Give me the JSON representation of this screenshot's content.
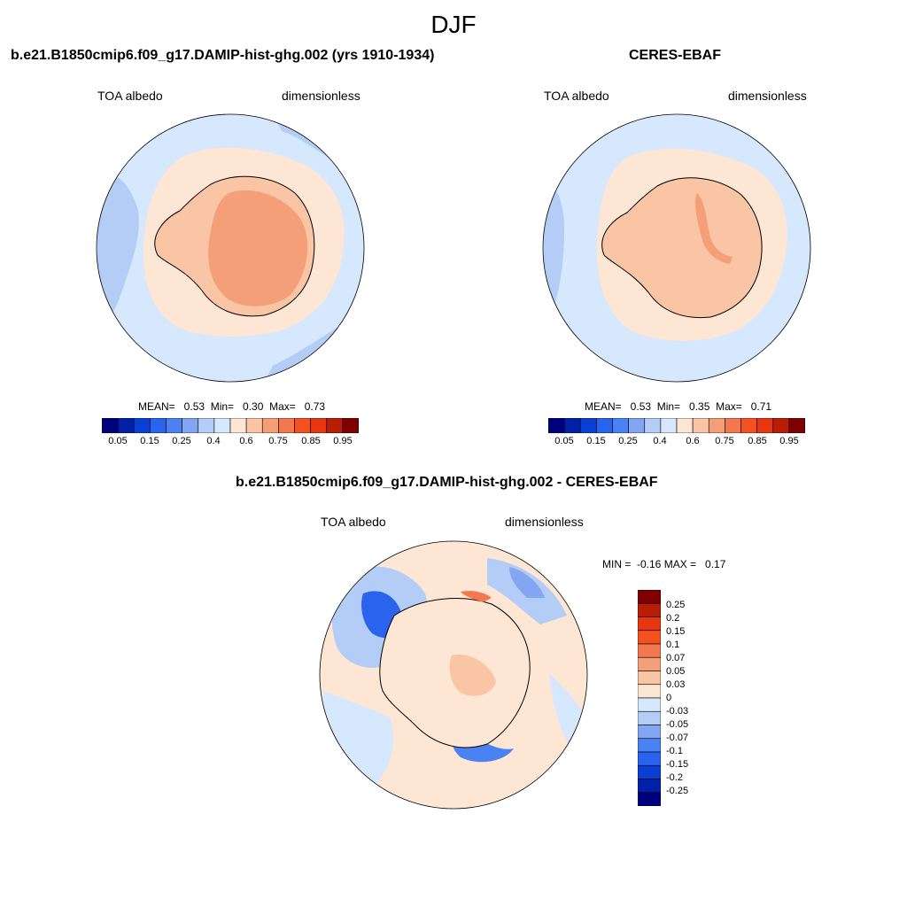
{
  "suptitle": "DJF",
  "palette": [
    "#00007f",
    "#0020a8",
    "#0a3fd6",
    "#2a63ee",
    "#4b82f3",
    "#84a6f2",
    "#b3cdf7",
    "#d6e8fd",
    "#fde6d4",
    "#f9c5a5",
    "#f59f78",
    "#f4784f",
    "#f55020",
    "#e63710",
    "#b81d06",
    "#7f0000"
  ],
  "left_panel": {
    "title": "b.e21.B1850cmip6.f09_g17.DAMIP-hist-ghg.002 (yrs 1910-1934)",
    "variable": "TOA albedo",
    "units": "dimensionless",
    "stats": "MEAN=   0.53  Min=   0.30  Max=   0.73",
    "colorbar_ticks": [
      "0.05",
      "0.15",
      "0.25",
      "0.4",
      "0.6",
      "0.75",
      "0.85",
      "0.95"
    ]
  },
  "right_panel": {
    "title": "CERES-EBAF",
    "variable": "TOA albedo",
    "units": "dimensionless",
    "stats": "MEAN=   0.53  Min=   0.35  Max=   0.71",
    "colorbar_ticks": [
      "0.05",
      "0.15",
      "0.25",
      "0.4",
      "0.6",
      "0.75",
      "0.85",
      "0.95"
    ]
  },
  "diff_panel": {
    "title": "b.e21.B1850cmip6.f09_g17.DAMIP-hist-ghg.002 - CERES-EBAF",
    "variable": "TOA albedo",
    "units": "dimensionless",
    "stats": "MIN =  -0.16 MAX =   0.17",
    "colorbar_ticks": [
      "0.25",
      "0.2",
      "0.15",
      "0.1",
      "0.07",
      "0.05",
      "0.03",
      "0",
      "-0.03",
      "-0.05",
      "-0.07",
      "-0.1",
      "-0.15",
      "-0.2",
      "-0.25"
    ],
    "colorbar_colors": [
      "#7f0000",
      "#b81d06",
      "#e63710",
      "#f55020",
      "#f4784f",
      "#f59f78",
      "#f9c5a5",
      "#fde6d4",
      "#d6e8fd",
      "#b3cdf7",
      "#84a6f2",
      "#4b82f3",
      "#2a63ee",
      "#0a3fd6",
      "#0020a8",
      "#00007f"
    ]
  }
}
